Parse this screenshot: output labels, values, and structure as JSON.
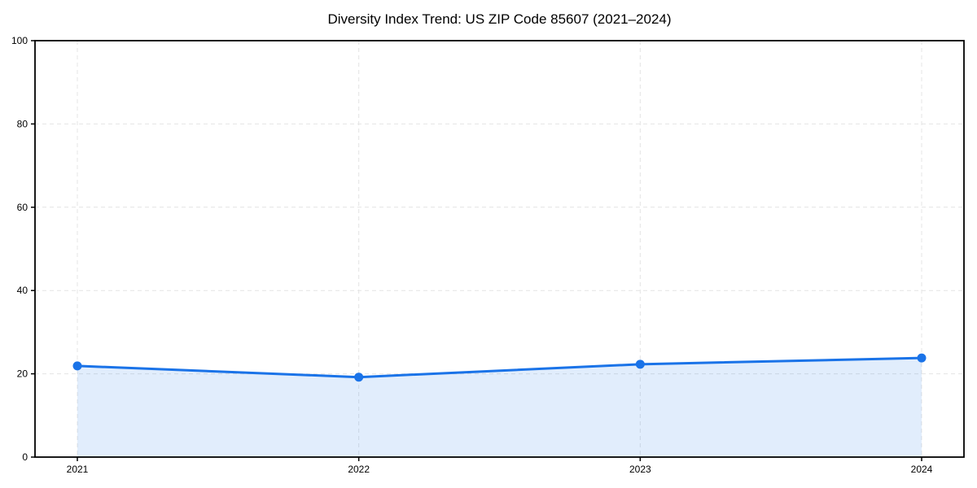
{
  "title": "Diversity Index Trend: US ZIP Code 85607 (2021–2024)",
  "chart_data": {
    "type": "area",
    "title": "Diversity Index Trend: US ZIP Code 85607 (2021–2024)",
    "categories": [
      "2021",
      "2022",
      "2023",
      "2024"
    ],
    "values": [
      21.9,
      19.2,
      22.3,
      23.8
    ],
    "series_name": "Diversity Index",
    "xlabel": "",
    "ylabel": "",
    "ylim": [
      0,
      100
    ],
    "yticks": [
      0,
      20,
      40,
      60,
      80,
      100
    ],
    "grid": "dashed",
    "legend_position": "none",
    "colors": {
      "line": "#1a73e8",
      "marker": "#1a73e8",
      "fill": "rgba(26,115,232,0.13)",
      "gridline": "#e4e4e4",
      "spine": "#000000",
      "tick_label": "#000000",
      "background": "#ffffff"
    }
  }
}
